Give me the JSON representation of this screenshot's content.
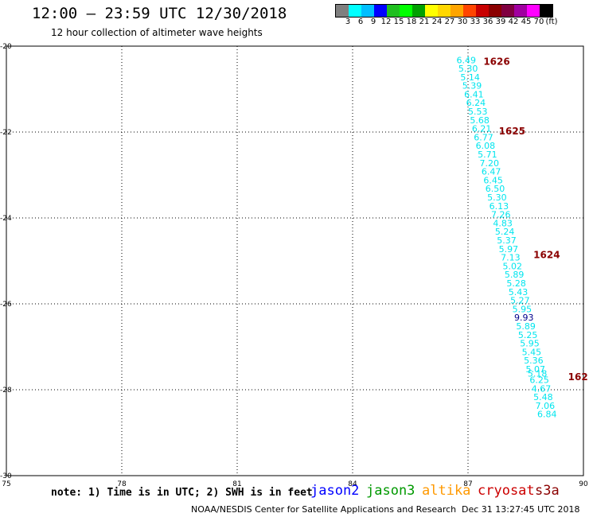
{
  "header": {
    "title": "12:00 – 23:59 UTC 12/30/2018",
    "subtitle": "12 hour collection of altimeter wave heights"
  },
  "colorbar": {
    "colors": [
      "#7f7f7f",
      "#00ffff",
      "#00bfff",
      "#0000ff",
      "#1fbf1f",
      "#00ff00",
      "#00a000",
      "#ffff00",
      "#ffd700",
      "#ffa500",
      "#ff4500",
      "#c80000",
      "#8b0000",
      "#800040",
      "#a000a0",
      "#ff00ff",
      "#000000"
    ],
    "labels": [
      "3",
      "6",
      "9",
      "12",
      "15",
      "18",
      "21",
      "24",
      "27",
      "30",
      "33",
      "36",
      "39",
      "42",
      "45",
      "70",
      "(ft)"
    ]
  },
  "map": {
    "x_ticks": [
      "75",
      "78",
      "81",
      "84",
      "87",
      "90"
    ],
    "y_ticks": [
      "-20",
      "-22",
      "-24",
      "-26",
      "-28",
      "-30"
    ],
    "lon_range": [
      75,
      90
    ],
    "lat_range": [
      -20,
      -30
    ]
  },
  "track": {
    "color": "#00e5ee",
    "dark_color": "#00008b",
    "points": [
      {
        "lon": 86.7,
        "lat": -20.18,
        "v": "6.49"
      },
      {
        "lon": 86.75,
        "lat": -20.37,
        "v": "5.30"
      },
      {
        "lon": 86.8,
        "lat": -20.57,
        "v": "5.14"
      },
      {
        "lon": 86.85,
        "lat": -20.77,
        "v": "5.39"
      },
      {
        "lon": 86.9,
        "lat": -20.97,
        "v": "6.41"
      },
      {
        "lon": 86.95,
        "lat": -21.17,
        "v": "6.24"
      },
      {
        "lon": 87.0,
        "lat": -21.37,
        "v": "5.53"
      },
      {
        "lon": 87.05,
        "lat": -21.57,
        "v": "5.68"
      },
      {
        "lon": 87.1,
        "lat": -21.77,
        "v": "6.21"
      },
      {
        "lon": 87.15,
        "lat": -21.97,
        "v": "6.77"
      },
      {
        "lon": 87.2,
        "lat": -22.17,
        "v": "6.08"
      },
      {
        "lon": 87.25,
        "lat": -22.37,
        "v": "5.71"
      },
      {
        "lon": 87.3,
        "lat": -22.57,
        "v": "7.20"
      },
      {
        "lon": 87.35,
        "lat": -22.77,
        "v": "6.47"
      },
      {
        "lon": 87.4,
        "lat": -22.97,
        "v": "6.45"
      },
      {
        "lon": 87.45,
        "lat": -23.17,
        "v": "6.50"
      },
      {
        "lon": 87.5,
        "lat": -23.37,
        "v": "5.30"
      },
      {
        "lon": 87.55,
        "lat": -23.57,
        "v": "6.13"
      },
      {
        "lon": 87.6,
        "lat": -23.77,
        "v": "7.26"
      },
      {
        "lon": 87.65,
        "lat": -23.97,
        "v": "4.83"
      },
      {
        "lon": 87.7,
        "lat": -24.17,
        "v": "5.24"
      },
      {
        "lon": 87.75,
        "lat": -24.37,
        "v": "5.37"
      },
      {
        "lon": 87.8,
        "lat": -24.57,
        "v": "5.97"
      },
      {
        "lon": 87.85,
        "lat": -24.77,
        "v": "7.13"
      },
      {
        "lon": 87.9,
        "lat": -24.97,
        "v": "5.02"
      },
      {
        "lon": 87.95,
        "lat": -25.17,
        "v": "5.89"
      },
      {
        "lon": 88.0,
        "lat": -25.37,
        "v": "5.28"
      },
      {
        "lon": 88.05,
        "lat": -25.57,
        "v": "5.43"
      },
      {
        "lon": 88.1,
        "lat": -25.77,
        "v": "5.27"
      },
      {
        "lon": 88.15,
        "lat": -25.97,
        "v": "5.95"
      },
      {
        "lon": 88.2,
        "lat": -26.17,
        "v": "9.93",
        "dark": true
      },
      {
        "lon": 88.25,
        "lat": -26.37,
        "v": "5.89"
      },
      {
        "lon": 88.3,
        "lat": -26.57,
        "v": "5.25"
      },
      {
        "lon": 88.35,
        "lat": -26.77,
        "v": "5.95"
      },
      {
        "lon": 88.4,
        "lat": -26.97,
        "v": "5.45"
      },
      {
        "lon": 88.45,
        "lat": -27.17,
        "v": "5.36"
      },
      {
        "lon": 88.5,
        "lat": -27.37,
        "v": "5.07"
      },
      {
        "lon": 88.55,
        "lat": -27.47,
        "v": "5.18"
      },
      {
        "lon": 88.6,
        "lat": -27.62,
        "v": "6.25"
      },
      {
        "lon": 88.65,
        "lat": -27.82,
        "v": "4.67"
      },
      {
        "lon": 88.7,
        "lat": -28.02,
        "v": "5.48"
      },
      {
        "lon": 88.75,
        "lat": -28.22,
        "v": "7.06"
      },
      {
        "lon": 88.8,
        "lat": -28.42,
        "v": "6.84"
      }
    ]
  },
  "time_labels": {
    "color": "#8b0000",
    "items": [
      {
        "lon": 87.4,
        "lat": -20.18,
        "t": "1626"
      },
      {
        "lon": 87.8,
        "lat": -21.8,
        "t": "1625"
      },
      {
        "lon": 88.7,
        "lat": -24.68,
        "t": "1624"
      },
      {
        "lon": 89.6,
        "lat": -27.52,
        "t": "162"
      }
    ]
  },
  "legend": {
    "note": "note: 1) Time is in UTC; 2) SWH is in feet",
    "satellites": [
      {
        "name": "jason2",
        "color": "#0000ff"
      },
      {
        "name": "jason3",
        "color": "#009900"
      },
      {
        "name": "altika",
        "color": "#ff9900"
      },
      {
        "name": "cryosat",
        "color": "#cc0000"
      },
      {
        "name": "s3a",
        "color": "#8b0000"
      }
    ]
  },
  "footer": {
    "credit": "NOAA/NESDIS Center for Satellite Applications and Research",
    "timestamp": "Dec 31 13:27:45 UTC 2018"
  }
}
